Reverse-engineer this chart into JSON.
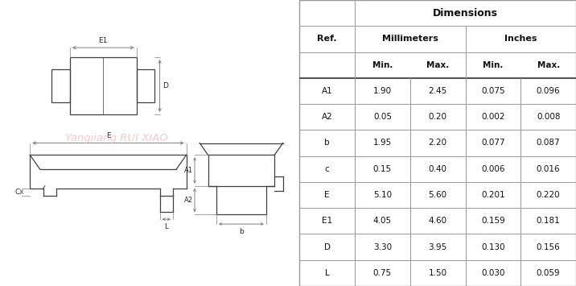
{
  "table_data": {
    "rows": [
      [
        "A1",
        "1.90",
        "2.45",
        "0.075",
        "0.096"
      ],
      [
        "A2",
        "0.05",
        "0.20",
        "0.002",
        "0.008"
      ],
      [
        "b",
        "1.95",
        "2.20",
        "0.077",
        "0.087"
      ],
      [
        "c",
        "0.15",
        "0.40",
        "0.006",
        "0.016"
      ],
      [
        "E",
        "5.10",
        "5.60",
        "0.201",
        "0.220"
      ],
      [
        "E1",
        "4.05",
        "4.60",
        "0.159",
        "0.181"
      ],
      [
        "D",
        "3.30",
        "3.95",
        "0.130",
        "0.156"
      ],
      [
        "L",
        "0.75",
        "1.50",
        "0.030",
        "0.059"
      ]
    ]
  },
  "watermark_text": "Yangjiang RUI XIAO",
  "watermark_color": "#e8a0a0",
  "bg_color": "#ffffff",
  "line_color": "#404040",
  "dim_line_color": "#808080",
  "table_line_color": "#999999"
}
